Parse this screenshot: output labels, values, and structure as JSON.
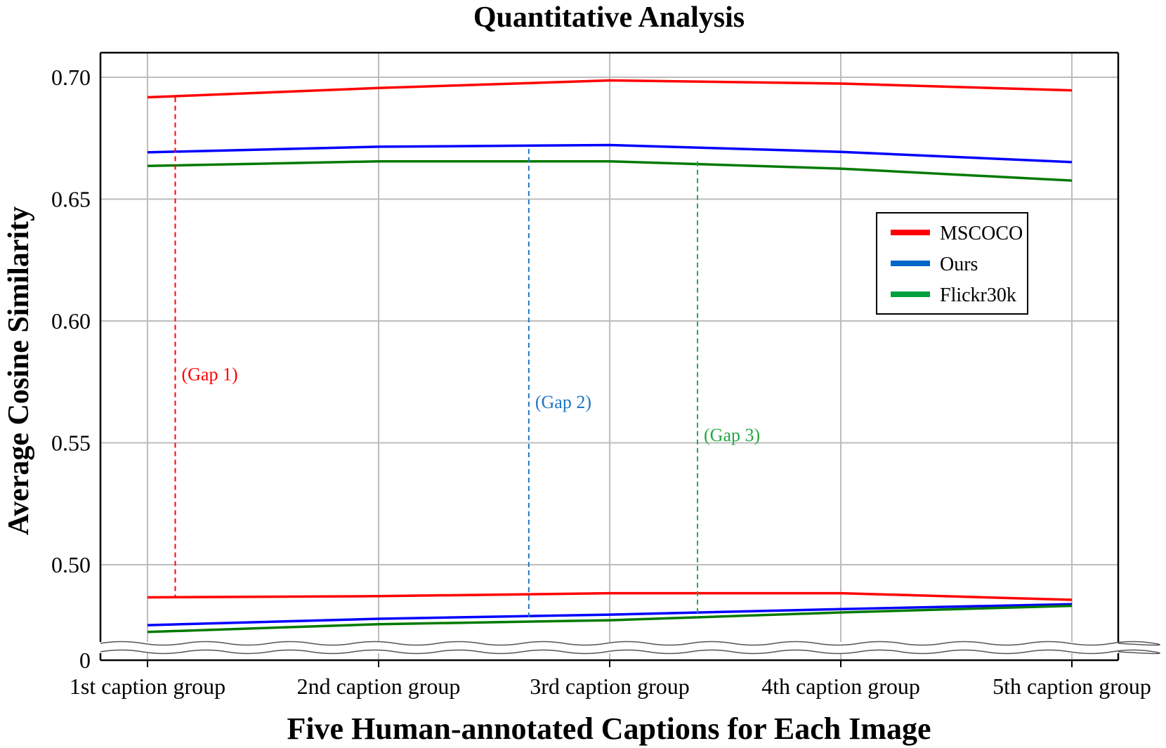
{
  "chart_data": {
    "type": "line",
    "title": "Quantitative Analysis",
    "xlabel": "Five Human-annotated Captions for Each Image",
    "ylabel": "Average Cosine Similarity",
    "categories": [
      "1st caption group",
      "2nd caption group",
      "3rd caption group",
      "4th caption group",
      "5th caption group"
    ],
    "y_axis": {
      "upper_ylim": [
        0.4655,
        0.71
      ],
      "ticks": [
        "0.70",
        "0.65",
        "0.60",
        "0.55",
        "0.50"
      ],
      "tick_values": [
        0.7,
        0.65,
        0.6,
        0.55,
        0.5
      ],
      "zero_label": "0",
      "broken": true
    },
    "grid": true,
    "legend_position": "right",
    "legend": [
      {
        "label": "MSCOCO",
        "color": "#ff0000"
      },
      {
        "label": "Ours",
        "color": "#0066cc"
      },
      {
        "label": "Flickr30k",
        "color": "#00a040"
      }
    ],
    "series": [
      {
        "name": "MSCOCO",
        "color": "#ff0000",
        "values": [
          0.6918,
          0.6956,
          0.6987,
          0.6974,
          0.6946
        ]
      },
      {
        "name": "Ours",
        "color": "#0000ff",
        "values": [
          0.6692,
          0.6715,
          0.6722,
          0.6694,
          0.6652
        ]
      },
      {
        "name": "Flickr30k",
        "color": "#007a00",
        "values": [
          0.6636,
          0.6655,
          0.6655,
          0.6625,
          0.6576
        ]
      },
      {
        "name": "MSCOCO",
        "color": "#ff0000",
        "values": [
          0.4866,
          0.4871,
          0.4883,
          0.4883,
          0.4856
        ]
      },
      {
        "name": "Ours",
        "color": "#0000ff",
        "values": [
          0.4752,
          0.4778,
          0.4795,
          0.4818,
          0.4838
        ]
      },
      {
        "name": "Flickr30k",
        "color": "#007a00",
        "values": [
          0.4724,
          0.4756,
          0.4772,
          0.4804,
          0.4831
        ]
      }
    ],
    "annotations": [
      {
        "label": "(Gap 1)",
        "color": "#ff0000",
        "x_category": 0.12,
        "y_from": 0.4866,
        "y_to": 0.6918,
        "label_y": 0.578
      },
      {
        "label": "(Gap 2)",
        "color": "#1f77c4",
        "x_category": 1.65,
        "y_from": 0.4778,
        "y_to": 0.6706,
        "label_y": 0.5665
      },
      {
        "label": "(Gap 3)",
        "color": "#22aa44",
        "x_category": 2.38,
        "y_from": 0.4785,
        "y_to": 0.6655,
        "label_y": 0.553
      }
    ]
  }
}
